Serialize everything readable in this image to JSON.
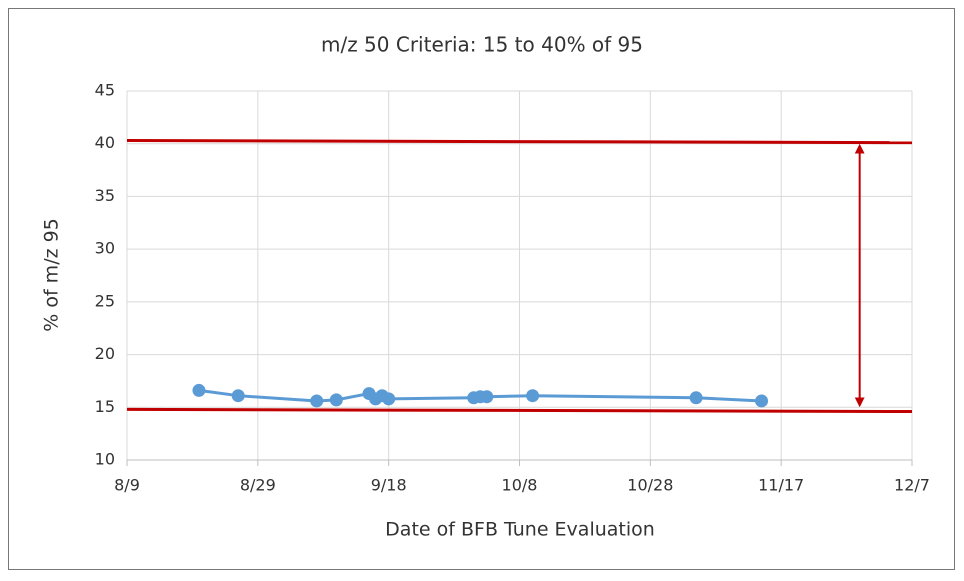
{
  "chart_data": {
    "type": "line",
    "title": "m/z 50 Criteria: 15 to 40% of 95",
    "x_label": "Date of BFB Tune Evaluation",
    "y_label": "% of m/z 95",
    "x": [
      "8/20",
      "8/26",
      "9/7",
      "9/10",
      "9/15",
      "9/16",
      "9/17",
      "9/18",
      "10/1",
      "10/2",
      "10/3",
      "10/10",
      "11/4",
      "11/14"
    ],
    "series": [
      {
        "color": "#5b9bd5",
        "values": [
          16.6,
          16.1,
          15.6,
          15.7,
          16.3,
          15.8,
          16.1,
          15.8,
          15.9,
          16.0,
          16.0,
          16.1,
          15.9,
          15.6
        ]
      }
    ],
    "limit_lines": [
      {
        "color": "#c00000",
        "x": [
          "8/9",
          "12/7"
        ],
        "values": [
          40.3,
          40.1
        ]
      },
      {
        "color": "#c00000",
        "x": [
          "8/9",
          "12/7"
        ],
        "values": [
          14.8,
          14.6
        ]
      }
    ],
    "arrow": {
      "color": "#c00000",
      "x": "11/29",
      "values": [
        40,
        15
      ]
    },
    "xlim": [
      "8/9",
      "12/7"
    ],
    "xticks": [
      "8/9",
      "8/29",
      "9/18",
      "10/8",
      "10/28",
      "11/17",
      "12/7"
    ],
    "ylim": [
      10,
      45
    ],
    "yticks": [
      10,
      15,
      20,
      25,
      30,
      35,
      40,
      45
    ],
    "grid": true
  }
}
